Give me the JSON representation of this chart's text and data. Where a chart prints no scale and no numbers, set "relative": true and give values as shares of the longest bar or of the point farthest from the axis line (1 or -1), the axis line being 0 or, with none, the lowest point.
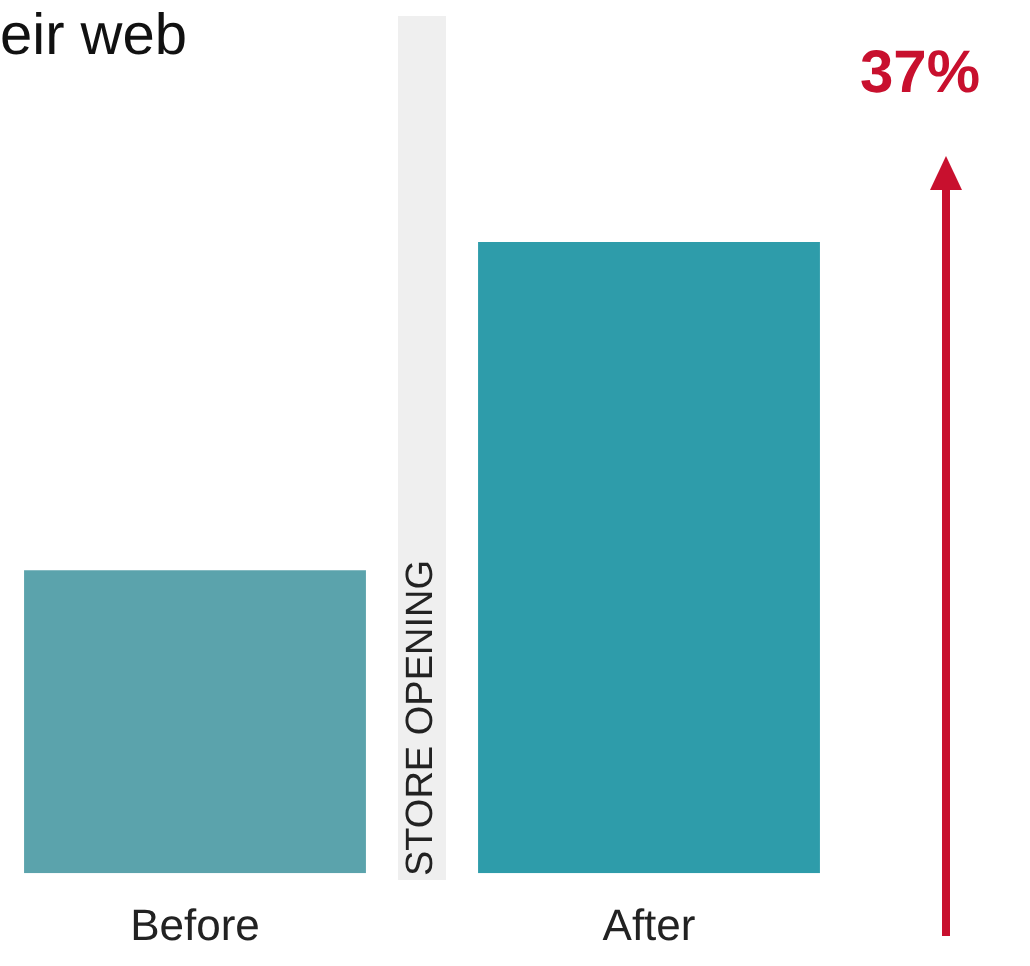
{
  "chart_data": {
    "type": "bar",
    "relative": true,
    "categories": [
      "Before",
      "After"
    ],
    "values": [
      0.48,
      1
    ],
    "colors": [
      "#5ba3ac",
      "#2e9caa"
    ],
    "annotations": [
      "eir web",
      "STORE OPENING",
      "37%"
    ]
  }
}
